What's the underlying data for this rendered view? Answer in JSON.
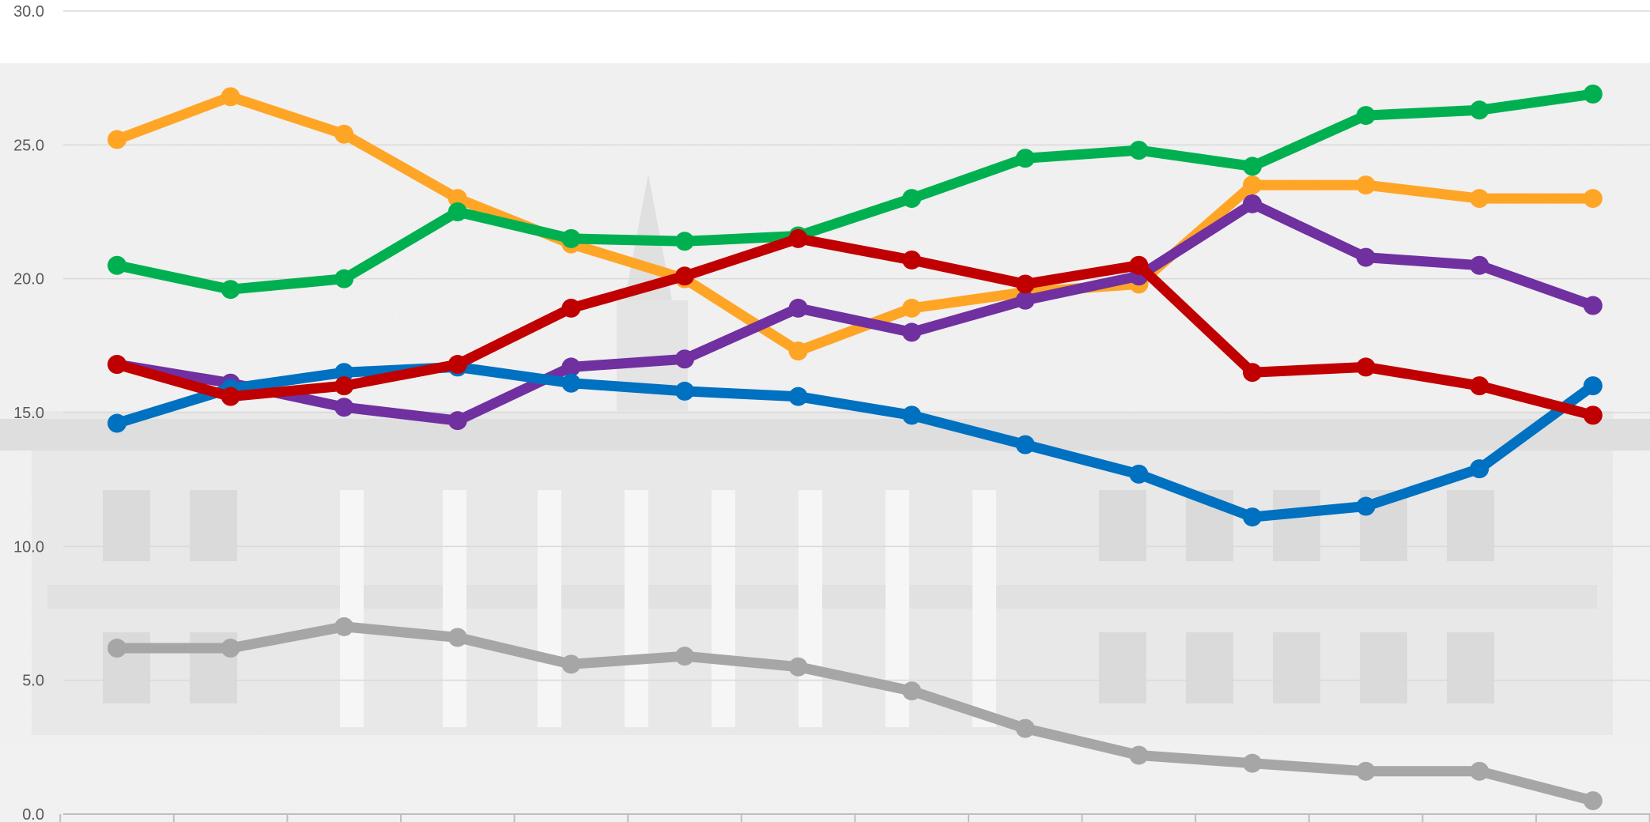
{
  "chart_data": {
    "type": "line",
    "title": "",
    "xlabel": "",
    "ylabel": "",
    "ylim": [
      0,
      30
    ],
    "y_ticks": [
      "0.0",
      "5.0",
      "10.0",
      "15.0",
      "20.0",
      "25.0",
      "30.0"
    ],
    "y_tick_values": [
      0,
      5,
      10,
      15,
      20,
      25,
      30
    ],
    "grid": true,
    "legend": "none",
    "background_image": "faded sketch of a colonnaded palace building",
    "x": [
      1,
      2,
      3,
      4,
      5,
      6,
      7,
      8,
      9,
      10,
      11,
      12,
      13,
      14
    ],
    "series": [
      {
        "color": "#ffa526",
        "values": [
          25.2,
          26.8,
          25.4,
          23.0,
          21.3,
          20.0,
          17.3,
          18.9,
          19.5,
          19.8,
          23.5,
          23.5,
          23.0,
          23.0
        ]
      },
      {
        "color": "#00b050",
        "values": [
          20.5,
          19.6,
          20.0,
          22.5,
          21.5,
          21.4,
          21.6,
          23.0,
          24.5,
          24.8,
          24.2,
          26.1,
          26.3,
          26.9
        ]
      },
      {
        "color": "#7030a0",
        "values": [
          16.8,
          16.1,
          15.2,
          14.7,
          16.7,
          17.0,
          18.9,
          18.0,
          19.2,
          20.1,
          22.8,
          20.8,
          20.5,
          19.0
        ]
      },
      {
        "color": "#0070c0",
        "values": [
          14.6,
          15.9,
          16.5,
          16.7,
          16.1,
          15.8,
          15.6,
          14.9,
          13.8,
          12.7,
          11.1,
          11.5,
          12.9,
          16.0
        ]
      },
      {
        "color": "#c00000",
        "values": [
          16.8,
          15.6,
          16.0,
          16.8,
          18.9,
          20.1,
          21.5,
          20.7,
          19.8,
          20.5,
          16.5,
          16.7,
          16.0,
          14.9
        ]
      },
      {
        "color": "#a6a6a6",
        "values": [
          6.2,
          6.2,
          7.0,
          6.6,
          5.6,
          5.9,
          5.5,
          4.6,
          3.2,
          2.2,
          1.9,
          1.6,
          1.6,
          0.5
        ]
      }
    ]
  }
}
